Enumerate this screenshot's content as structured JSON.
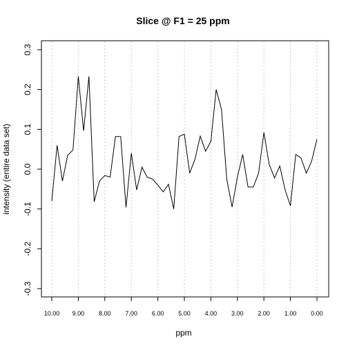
{
  "chart_data": {
    "type": "line",
    "title": "Slice @ F1 = 25 ppm",
    "xlabel": "ppm",
    "ylabel": "intensity (entire data set)",
    "xlim": [
      10.0,
      0.0
    ],
    "ylim": [
      -0.3,
      0.3
    ],
    "x_reversed": true,
    "grid": {
      "vertical_dotted": true
    },
    "line_color": "#000000",
    "grid_color": "#c8c8c8",
    "x_ticks": [
      10.0,
      9.0,
      8.0,
      7.0,
      6.0,
      5.0,
      4.0,
      3.0,
      2.0,
      1.0,
      0.0
    ],
    "x_tick_labels": [
      "10.00",
      "9.00",
      "8.00",
      "7.00",
      "6.00",
      "5.00",
      "4.00",
      "3.00",
      "2.00",
      "1.00",
      "0.00"
    ],
    "y_ticks": [
      -0.3,
      -0.2,
      -0.1,
      0.0,
      0.1,
      0.2,
      0.3
    ],
    "y_tick_labels": [
      "-0.3",
      "-0.2",
      "-0.1",
      "0.0",
      "0.1",
      "0.2",
      "0.3"
    ],
    "series": [
      {
        "x": [
          10.0,
          9.8,
          9.6,
          9.4,
          9.2,
          9.0,
          8.8,
          8.6,
          8.4,
          8.2,
          8.0,
          7.8,
          7.6,
          7.4,
          7.2,
          7.0,
          6.8,
          6.6,
          6.4,
          6.2,
          6.0,
          5.8,
          5.6,
          5.4,
          5.2,
          5.0,
          4.8,
          4.6,
          4.4,
          4.2,
          4.0,
          3.8,
          3.6,
          3.4,
          3.2,
          3.0,
          2.8,
          2.6,
          2.4,
          2.2,
          2.0,
          1.8,
          1.6,
          1.4,
          1.2,
          1.0,
          0.8,
          0.6,
          0.4,
          0.2,
          0.0
        ],
        "values": [
          -0.08,
          0.06,
          -0.03,
          0.035,
          0.048,
          0.233,
          0.096,
          0.233,
          -0.082,
          -0.03,
          -0.016,
          -0.02,
          0.082,
          0.082,
          -0.096,
          0.04,
          -0.052,
          0.005,
          -0.02,
          -0.025,
          -0.04,
          -0.057,
          -0.038,
          -0.1,
          0.082,
          0.088,
          -0.01,
          0.025,
          0.083,
          0.045,
          0.07,
          0.2,
          0.15,
          -0.025,
          -0.095,
          -0.02,
          0.037,
          -0.045,
          -0.045,
          -0.01,
          0.092,
          0.012,
          -0.022,
          0.008,
          -0.052,
          -0.092,
          0.037,
          0.028,
          -0.01,
          0.02,
          0.075
        ]
      }
    ]
  }
}
